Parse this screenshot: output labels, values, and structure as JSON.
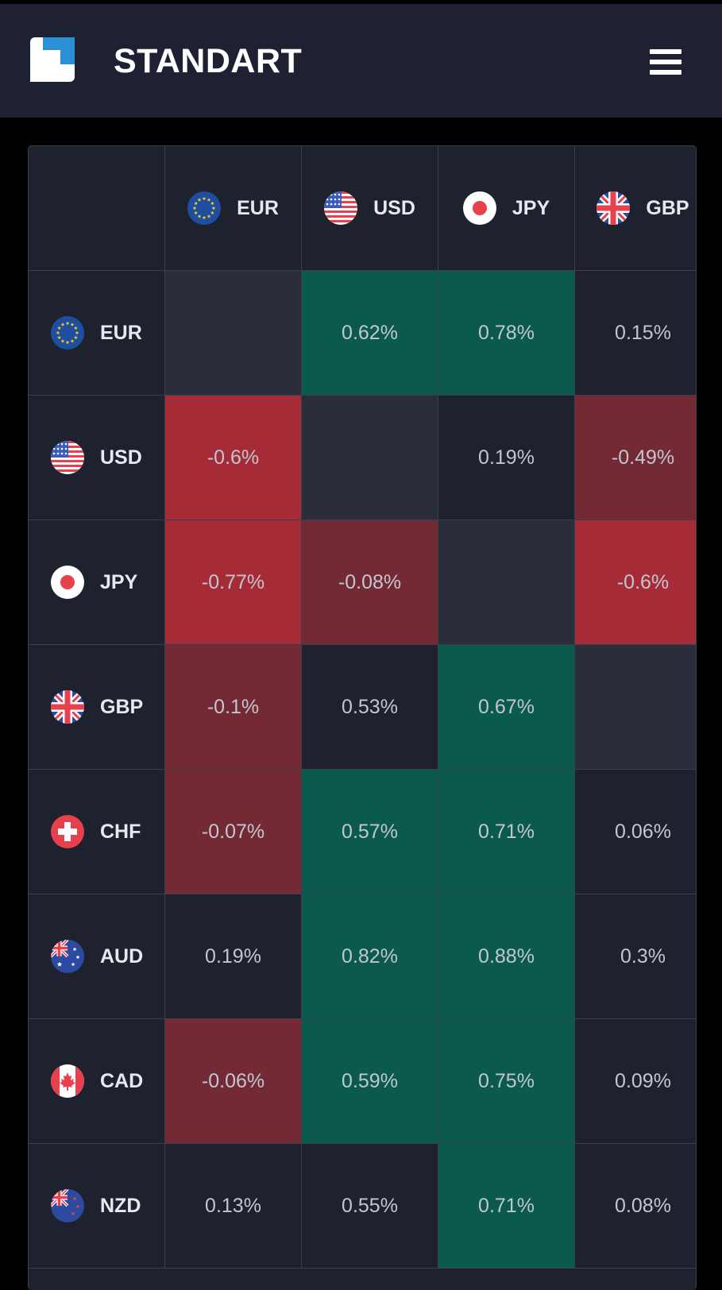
{
  "app": {
    "title": "STANDART",
    "logo_icon": "standart-logo",
    "menu_icon": "hamburger-menu-icon"
  },
  "colors": {
    "header_bg": "#1d2131",
    "cell_neutral": "#1e222e",
    "cell_diagonal": "#2a2e3a",
    "pos_strong": "#0b5b4d",
    "neg_strong": "#a52b37",
    "neg_weak": "#742a35"
  },
  "columns": [
    {
      "code": "EUR",
      "flag": "eu-flag-icon"
    },
    {
      "code": "USD",
      "flag": "us-flag-icon"
    },
    {
      "code": "JPY",
      "flag": "jp-flag-icon"
    },
    {
      "code": "GBP",
      "flag": "gb-flag-icon"
    }
  ],
  "rows": [
    {
      "code": "EUR",
      "flag": "eu-flag-icon",
      "cells": [
        {
          "value": "",
          "tone": "diag"
        },
        {
          "value": "0.62%",
          "tone": "pos"
        },
        {
          "value": "0.78%",
          "tone": "pos"
        },
        {
          "value": "0.15%",
          "tone": "neutral"
        }
      ]
    },
    {
      "code": "USD",
      "flag": "us-flag-icon",
      "cells": [
        {
          "value": "-0.6%",
          "tone": "neg"
        },
        {
          "value": "",
          "tone": "diag"
        },
        {
          "value": "0.19%",
          "tone": "neutral"
        },
        {
          "value": "-0.49%",
          "tone": "neg-weak"
        }
      ]
    },
    {
      "code": "JPY",
      "flag": "jp-flag-icon",
      "cells": [
        {
          "value": "-0.77%",
          "tone": "neg"
        },
        {
          "value": "-0.08%",
          "tone": "neg-weak"
        },
        {
          "value": "",
          "tone": "diag"
        },
        {
          "value": "-0.6%",
          "tone": "neg"
        }
      ]
    },
    {
      "code": "GBP",
      "flag": "gb-flag-icon",
      "cells": [
        {
          "value": "-0.1%",
          "tone": "neg-weak"
        },
        {
          "value": "0.53%",
          "tone": "neutral"
        },
        {
          "value": "0.67%",
          "tone": "pos"
        },
        {
          "value": "",
          "tone": "diag"
        }
      ]
    },
    {
      "code": "CHF",
      "flag": "ch-flag-icon",
      "cells": [
        {
          "value": "-0.07%",
          "tone": "neg-weak"
        },
        {
          "value": "0.57%",
          "tone": "pos"
        },
        {
          "value": "0.71%",
          "tone": "pos"
        },
        {
          "value": "0.06%",
          "tone": "neutral"
        }
      ]
    },
    {
      "code": "AUD",
      "flag": "au-flag-icon",
      "cells": [
        {
          "value": "0.19%",
          "tone": "neutral"
        },
        {
          "value": "0.82%",
          "tone": "pos"
        },
        {
          "value": "0.88%",
          "tone": "pos"
        },
        {
          "value": "0.3%",
          "tone": "neutral"
        }
      ]
    },
    {
      "code": "CAD",
      "flag": "ca-flag-icon",
      "cells": [
        {
          "value": "-0.06%",
          "tone": "neg-weak"
        },
        {
          "value": "0.59%",
          "tone": "pos"
        },
        {
          "value": "0.75%",
          "tone": "pos"
        },
        {
          "value": "0.09%",
          "tone": "neutral"
        }
      ]
    },
    {
      "code": "NZD",
      "flag": "nz-flag-icon",
      "cells": [
        {
          "value": "0.13%",
          "tone": "neutral"
        },
        {
          "value": "0.55%",
          "tone": "neutral"
        },
        {
          "value": "0.71%",
          "tone": "pos"
        },
        {
          "value": "0.08%",
          "tone": "neutral"
        }
      ]
    }
  ]
}
